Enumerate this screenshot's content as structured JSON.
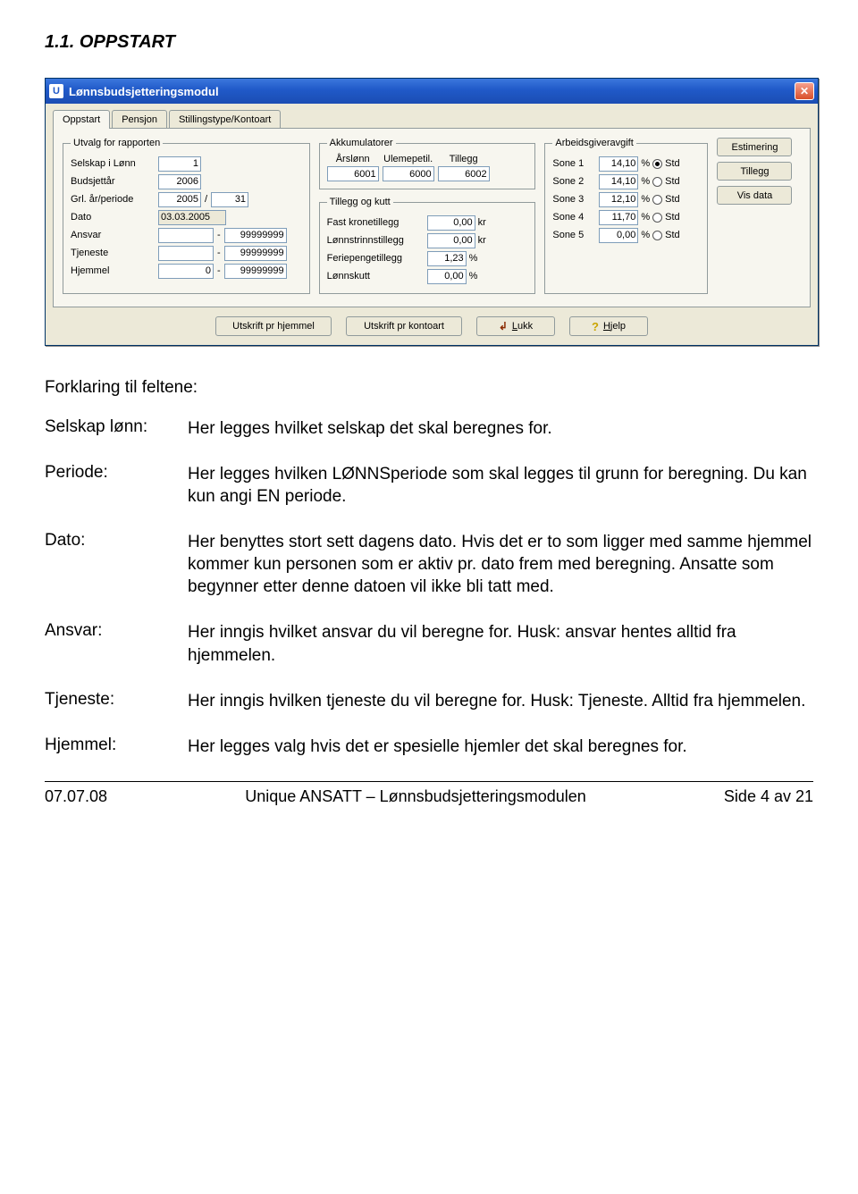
{
  "section_heading": "1.1. OPPSTART",
  "window": {
    "title": "Lønnsbudsjetteringsmodul",
    "tabs": [
      "Oppstart",
      "Pensjon",
      "Stillingstype/Kontoart"
    ],
    "active_tab": 0,
    "group_utvalg": {
      "legend": "Utvalg for rapporten",
      "rows": {
        "selskap": {
          "label": "Selskap i Lønn",
          "value": "1"
        },
        "budsjettar": {
          "label": "Budsjettår",
          "value": "2006"
        },
        "grl": {
          "label": "Grl. år/periode",
          "year": "2005",
          "period": "31"
        },
        "dato": {
          "label": "Dato",
          "value": "03.03.2005"
        },
        "ansvar": {
          "label": "Ansvar",
          "from": "",
          "to": "99999999"
        },
        "tjeneste": {
          "label": "Tjeneste",
          "from": "",
          "to": "99999999"
        },
        "hjemmel": {
          "label": "Hjemmel",
          "from": "0",
          "to": "99999999"
        }
      }
    },
    "group_akk": {
      "legend": "Akkumulatorer",
      "cols": [
        {
          "label": "Årslønn",
          "value": "6001"
        },
        {
          "label": "Ulemepetil.",
          "value": "6000"
        },
        {
          "label": "Tillegg",
          "value": "6002"
        }
      ]
    },
    "group_tillegg": {
      "legend": "Tillegg og kutt",
      "rows": {
        "fast": {
          "label": "Fast kronetillegg",
          "value": "0,00",
          "unit": "kr"
        },
        "lonnstrinn": {
          "label": "Lønnstrinnstillegg",
          "value": "0,00",
          "unit": "kr"
        },
        "feriepenge": {
          "label": "Feriepengetillegg",
          "value": "1,23",
          "unit": "%"
        },
        "lonnskutt": {
          "label": "Lønnskutt",
          "value": "0,00",
          "unit": "%"
        }
      }
    },
    "group_arbeid": {
      "legend": "Arbeidsgiveravgift",
      "rows": [
        {
          "label": "Sone 1",
          "value": "14,10",
          "checked": true,
          "right": "Std"
        },
        {
          "label": "Sone 2",
          "value": "14,10",
          "checked": false,
          "right": "Std"
        },
        {
          "label": "Sone 3",
          "value": "12,10",
          "checked": false,
          "right": "Std"
        },
        {
          "label": "Sone 4",
          "value": "11,70",
          "checked": false,
          "right": "Std"
        },
        {
          "label": "Sone 5",
          "value": "0,00",
          "checked": false,
          "right": "Std"
        }
      ],
      "unit": "%"
    },
    "side_buttons": {
      "estimering": "Estimering",
      "tillegg": "Tillegg",
      "visdata": "Vis data"
    },
    "bottom_buttons": {
      "hjemmel": "Utskrift pr hjemmel",
      "kontoart": "Utskrift pr kontoart",
      "lukk": "Lukk",
      "hjelp": "Hjelp"
    }
  },
  "body_heading": "Forklaring til feltene:",
  "defs": [
    {
      "term": "Selskap lønn:",
      "desc": "Her legges hvilket selskap det skal beregnes for."
    },
    {
      "term": "Periode:",
      "desc": "Her legges hvilken LØNNSperiode som skal legges til grunn for beregning. Du kan kun angi EN periode."
    },
    {
      "term": "Dato:",
      "desc": "Her benyttes stort sett dagens dato. Hvis det er to som ligger med samme hjemmel kommer kun personen som er aktiv pr. dato frem med beregning. Ansatte som begynner etter denne datoen vil ikke bli tatt med."
    },
    {
      "term": "Ansvar:",
      "desc": "Her inngis hvilket ansvar du vil beregne for. Husk: ansvar hentes alltid fra hjemmelen."
    },
    {
      "term": "Tjeneste:",
      "desc": "Her inngis hvilken tjeneste du vil beregne for. Husk: Tjeneste. Alltid fra hjemmelen."
    },
    {
      "term": "Hjemmel:",
      "desc": "Her legges valg hvis det er spesielle hjemler det skal beregnes for."
    }
  ],
  "footer": {
    "left": "07.07.08",
    "center": "Unique ANSATT – Lønnsbudsjetteringsmodulen",
    "right": "Side 4 av 21"
  },
  "colors": {
    "page_bg": "#ffffff",
    "text": "#000000",
    "win_bg": "#ece9d8",
    "panel_bg": "#f7f6ef",
    "titlebar_top": "#3b77dd",
    "titlebar_bottom": "#1b4db3",
    "field_border": "#7f9db9",
    "group_border": "#919b9c",
    "close_btn": "#d94f2a"
  }
}
